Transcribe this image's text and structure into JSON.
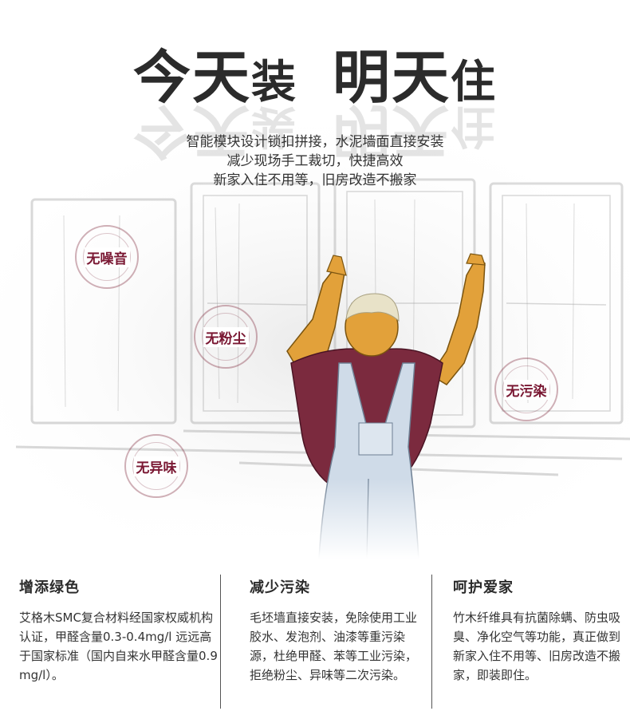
{
  "hero": {
    "title": {
      "part1_big": "今天",
      "part1_small": "装",
      "part2_big": "明天",
      "part2_small": "住"
    },
    "subtitle_lines": [
      "智能模块设计锁扣拼接，水泥墙面直接安装",
      "减少现场手工裁切，快捷高效",
      "新家入住不用等，旧房改造不搬家"
    ]
  },
  "badges": [
    {
      "label": "无噪音"
    },
    {
      "label": "无粉尘"
    },
    {
      "label": "无污染"
    },
    {
      "label": "无异味"
    }
  ],
  "features": [
    {
      "title": "增添绿色",
      "body": "艾格木SMC复合材料经国家权威机构认证，甲醛含量0.3-0.4mg/l 远远高于国家标准（国内自来水甲醛含量0.9mg/l）。"
    },
    {
      "title": "减少污染",
      "body": "毛坯墙直接安装，免除使用工业胶水、发泡剂、油漆等重污染源，杜绝甲醛、苯等工业污染，拒绝粉尘、异味等二次污染。"
    },
    {
      "title": "呵护爱家",
      "body": "竹木纤维具有抗菌除螨、防虫吸臭、净化空气等功能，真正做到新家入住不用等、旧房改造不搬家，即装即住。"
    }
  ],
  "colors": {
    "accent": "#7a1833",
    "shirt": "#7b2a3e",
    "overalls": "#cfdbe8",
    "skin": "#e2a13a",
    "hair": "#e8e2c8",
    "text": "#333333"
  },
  "illustration": {
    "icon": "worker-installing-wall-panels-illustration"
  }
}
